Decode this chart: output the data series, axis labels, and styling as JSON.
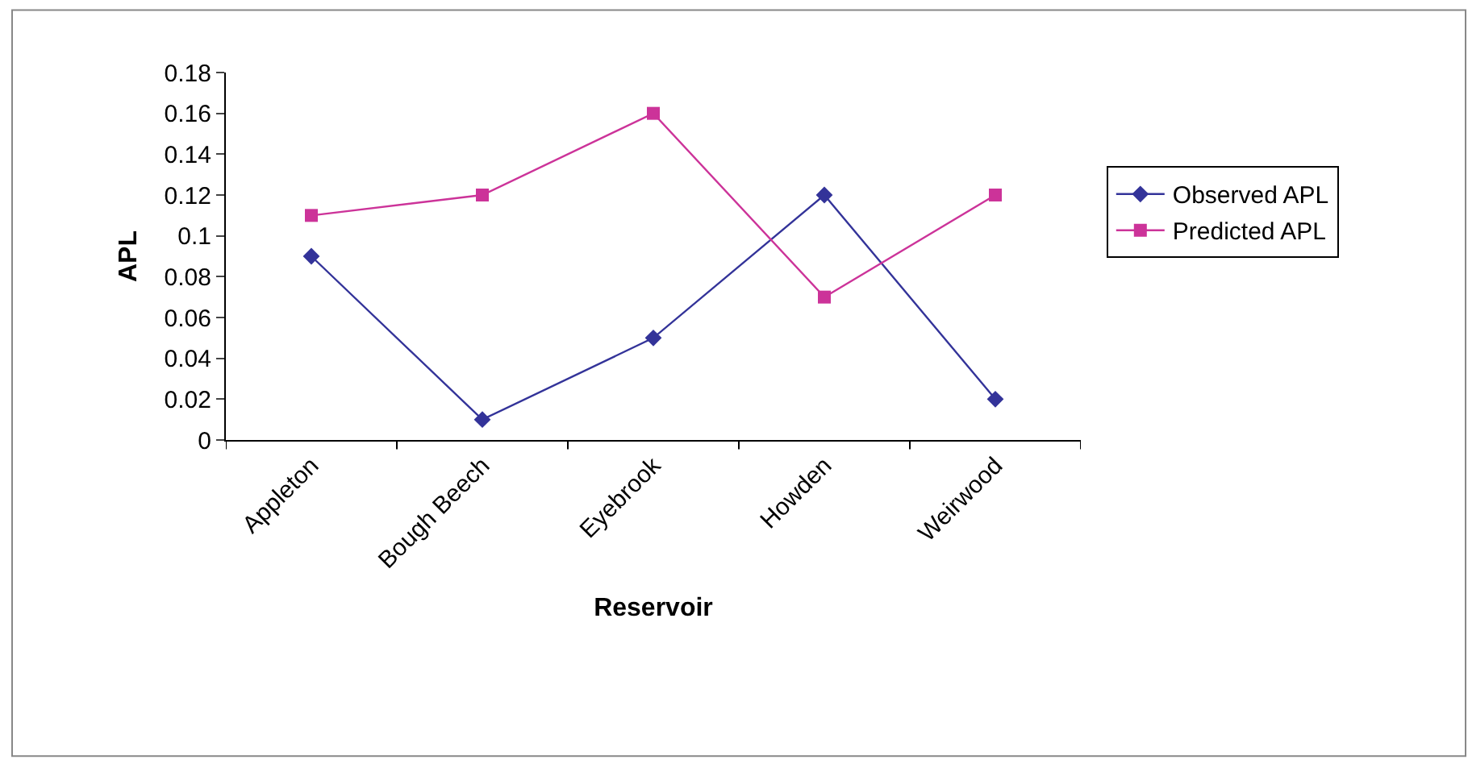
{
  "chart_data": {
    "type": "line",
    "xlabel": "Reservoir",
    "ylabel": "APL",
    "categories": [
      "Appleton",
      "Bough Beech",
      "Eyebrook",
      "Howden",
      "Weirwood"
    ],
    "series": [
      {
        "name": "Observed APL",
        "color": "#333399",
        "marker": "diamond",
        "values": [
          0.09,
          0.01,
          0.05,
          0.12,
          0.02
        ]
      },
      {
        "name": "Predicted APL",
        "color": "#cc3399",
        "marker": "square",
        "values": [
          0.11,
          0.12,
          0.16,
          0.07,
          0.12
        ]
      }
    ],
    "ylim": [
      0,
      0.18
    ],
    "yticks": [
      0,
      0.02,
      0.04,
      0.06,
      0.08,
      0.1,
      0.12,
      0.14,
      0.16,
      0.18
    ],
    "legend": "right"
  }
}
